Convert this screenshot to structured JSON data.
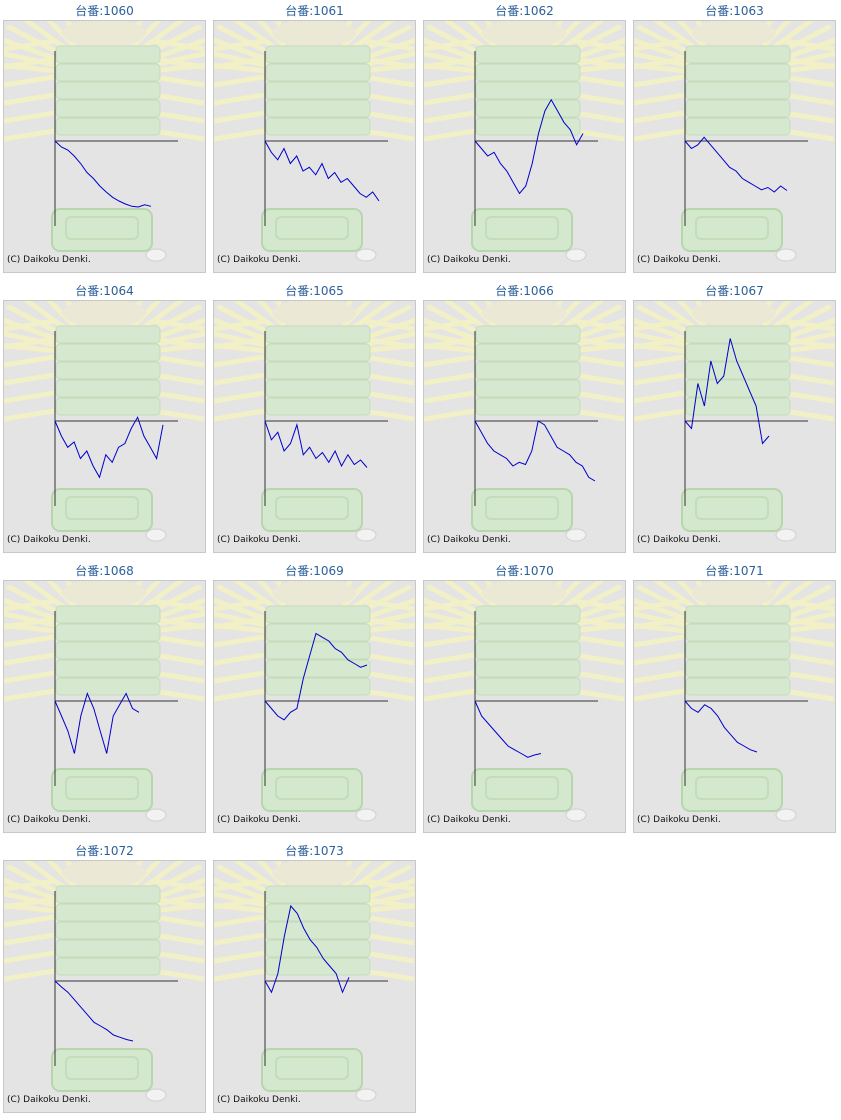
{
  "copyright": "(C) Daikoku Denki.",
  "colors": {
    "line": "#0000cc",
    "axis": "#333333",
    "title": "#2b5f99",
    "background": "#e4e4e4"
  },
  "chart_data": [
    {
      "type": "line",
      "title": "台番:1060",
      "values": [
        0,
        -8,
        -12,
        -20,
        -30,
        -42,
        -50,
        -60,
        -68,
        -75,
        -80,
        -84,
        -87,
        -88,
        -85,
        -87
      ]
    },
    {
      "type": "line",
      "title": "台番:1061",
      "values": [
        0,
        -15,
        -25,
        -10,
        -30,
        -20,
        -40,
        -35,
        -45,
        -30,
        -50,
        -42,
        -55,
        -50,
        -60,
        -70,
        -75,
        -68,
        -80
      ]
    },
    {
      "type": "line",
      "title": "台番:1062",
      "values": [
        0,
        -10,
        -20,
        -15,
        -30,
        -40,
        -55,
        -70,
        -60,
        -30,
        10,
        40,
        55,
        40,
        25,
        15,
        -5,
        10
      ]
    },
    {
      "type": "line",
      "title": "台番:1063",
      "values": [
        0,
        -10,
        -5,
        5,
        -5,
        -15,
        -25,
        -35,
        -40,
        -50,
        -55,
        -60,
        -65,
        -62,
        -68,
        -60,
        -66
      ]
    },
    {
      "type": "line",
      "title": "台番:1064",
      "values": [
        0,
        -20,
        -35,
        -28,
        -50,
        -40,
        -60,
        -75,
        -45,
        -55,
        -35,
        -30,
        -10,
        5,
        -20,
        -35,
        -50,
        -5
      ]
    },
    {
      "type": "line",
      "title": "台番:1065",
      "values": [
        0,
        -25,
        -15,
        -40,
        -30,
        -5,
        -45,
        -35,
        -50,
        -42,
        -55,
        -40,
        -60,
        -45,
        -58,
        -52,
        -62
      ]
    },
    {
      "type": "line",
      "title": "台番:1066",
      "values": [
        0,
        -15,
        -30,
        -40,
        -45,
        -50,
        -60,
        -55,
        -58,
        -40,
        0,
        -5,
        -20,
        -35,
        -40,
        -45,
        -55,
        -60,
        -75,
        -80
      ]
    },
    {
      "type": "line",
      "title": "台番:1067",
      "values": [
        0,
        -10,
        50,
        20,
        80,
        50,
        60,
        110,
        80,
        60,
        40,
        20,
        -30,
        -20
      ]
    },
    {
      "type": "line",
      "title": "台番:1068",
      "values": [
        0,
        -20,
        -40,
        -70,
        -20,
        10,
        -10,
        -40,
        -70,
        -20,
        -5,
        10,
        -10,
        -15
      ]
    },
    {
      "type": "line",
      "title": "台番:1069",
      "values": [
        0,
        -10,
        -20,
        -25,
        -15,
        -10,
        30,
        60,
        90,
        85,
        80,
        70,
        65,
        55,
        50,
        45,
        48
      ]
    },
    {
      "type": "line",
      "title": "台番:1070",
      "values": [
        0,
        -20,
        -30,
        -40,
        -50,
        -60,
        -65,
        -70,
        -75,
        -72,
        -70
      ]
    },
    {
      "type": "line",
      "title": "台番:1071",
      "values": [
        0,
        -10,
        -15,
        -5,
        -10,
        -20,
        -35,
        -45,
        -55,
        -60,
        -65,
        -68
      ]
    },
    {
      "type": "line",
      "title": "台番:1072",
      "values": [
        0,
        -8,
        -15,
        -25,
        -35,
        -45,
        -55,
        -60,
        -65,
        -72,
        -75,
        -78,
        -80
      ]
    },
    {
      "type": "line",
      "title": "台番:1073",
      "values": [
        0,
        -15,
        10,
        60,
        100,
        90,
        70,
        55,
        45,
        30,
        20,
        10,
        -15,
        5
      ]
    }
  ]
}
